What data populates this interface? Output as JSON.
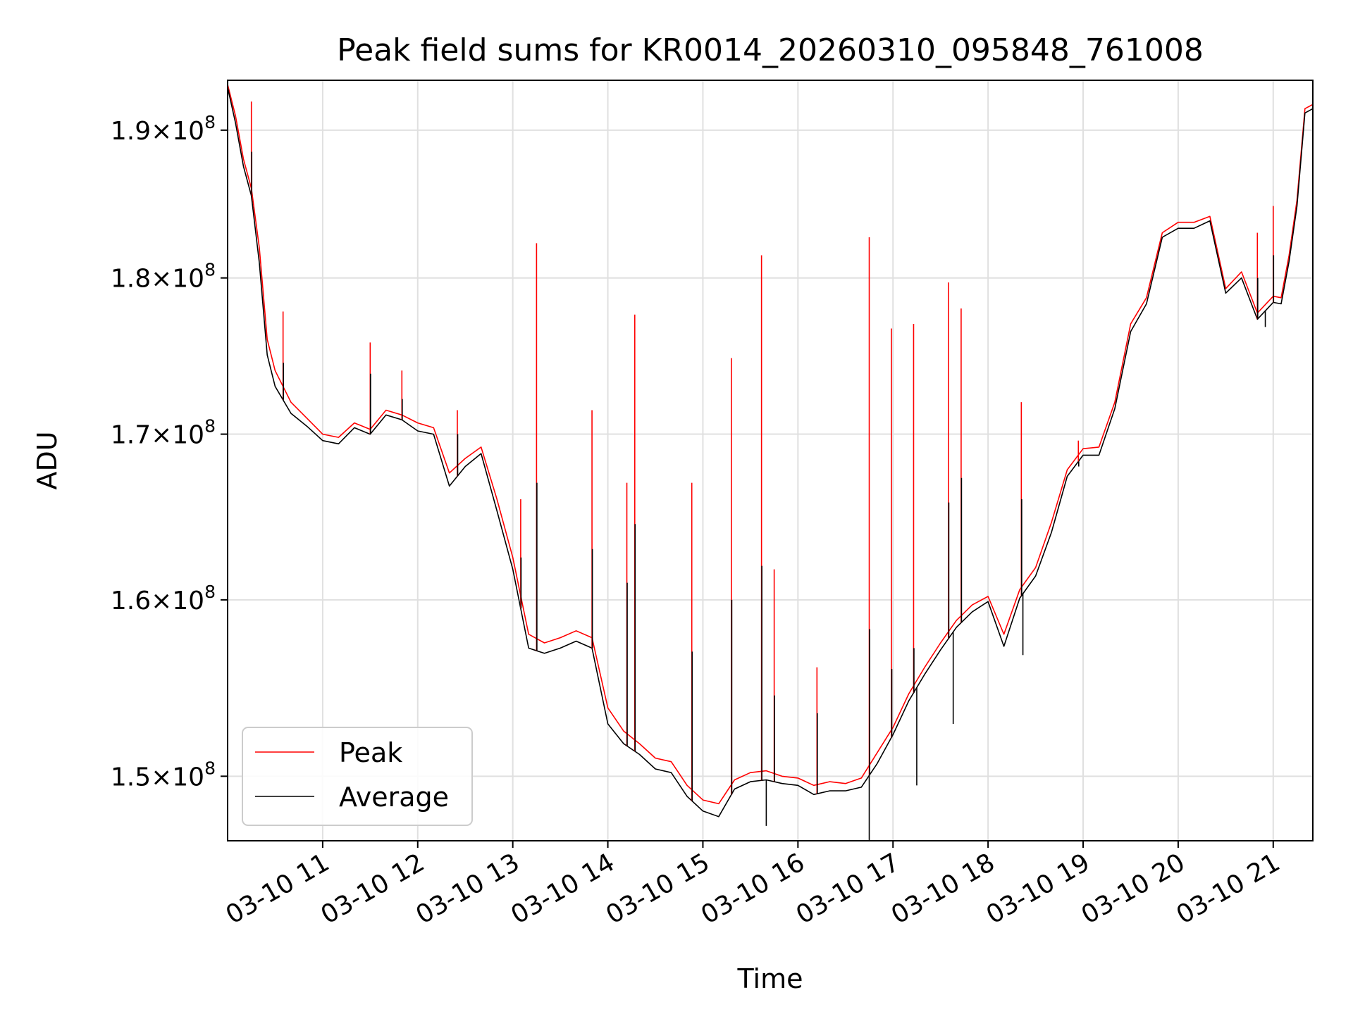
{
  "chart_data": {
    "type": "line",
    "title": "Peak field sums for KR0014_20260310_095848_761008",
    "xlabel": "Time",
    "ylabel": "ADU",
    "yscale": "log",
    "grid": true,
    "legend_position": "lower-left",
    "xlim": [
      "03-10 10:00",
      "03-10 21:25"
    ],
    "ylim": [
      146500000,
      193500000
    ],
    "x_ticks": [
      "03-10 11",
      "03-10 12",
      "03-10 13",
      "03-10 14",
      "03-10 15",
      "03-10 16",
      "03-10 17",
      "03-10 18",
      "03-10 19",
      "03-10 20",
      "03-10 21"
    ],
    "y_ticks": [
      {
        "value": 150000000,
        "mantissa": "1.5",
        "exponent": "8"
      },
      {
        "value": 160000000,
        "mantissa": "1.6",
        "exponent": "8"
      },
      {
        "value": 170000000,
        "mantissa": "1.7",
        "exponent": "8"
      },
      {
        "value": 180000000,
        "mantissa": "1.8",
        "exponent": "8"
      },
      {
        "value": 190000000,
        "mantissa": "1.9",
        "exponent": "8"
      }
    ],
    "y_tick_times": "×10",
    "x": [
      "03-10 10:00",
      "03-10 10:05",
      "03-10 10:10",
      "03-10 10:15",
      "03-10 10:20",
      "03-10 10:25",
      "03-10 10:30",
      "03-10 10:40",
      "03-10 10:50",
      "03-10 11:00",
      "03-10 11:10",
      "03-10 11:20",
      "03-10 11:30",
      "03-10 11:40",
      "03-10 11:50",
      "03-10 12:00",
      "03-10 12:10",
      "03-10 12:20",
      "03-10 12:30",
      "03-10 12:40",
      "03-10 12:50",
      "03-10 13:00",
      "03-10 13:10",
      "03-10 13:20",
      "03-10 13:30",
      "03-10 13:40",
      "03-10 13:50",
      "03-10 14:00",
      "03-10 14:10",
      "03-10 14:20",
      "03-10 14:30",
      "03-10 14:40",
      "03-10 14:50",
      "03-10 15:00",
      "03-10 15:10",
      "03-10 15:20",
      "03-10 15:30",
      "03-10 15:40",
      "03-10 15:50",
      "03-10 16:00",
      "03-10 16:10",
      "03-10 16:20",
      "03-10 16:30",
      "03-10 16:40",
      "03-10 16:50",
      "03-10 17:00",
      "03-10 17:10",
      "03-10 17:20",
      "03-10 17:30",
      "03-10 17:40",
      "03-10 17:50",
      "03-10 18:00",
      "03-10 18:10",
      "03-10 18:20",
      "03-10 18:30",
      "03-10 18:40",
      "03-10 18:50",
      "03-10 19:00",
      "03-10 19:10",
      "03-10 19:20",
      "03-10 19:30",
      "03-10 19:40",
      "03-10 19:50",
      "03-10 20:00",
      "03-10 20:10",
      "03-10 20:20",
      "03-10 20:30",
      "03-10 20:40",
      "03-10 20:50",
      "03-10 21:00",
      "03-10 21:05",
      "03-10 21:10",
      "03-10 21:15",
      "03-10 21:20",
      "03-10 21:25"
    ],
    "series": [
      {
        "name": "Peak",
        "color": "#ff0000",
        "values": [
          193200000,
          191000000,
          188000000,
          186000000,
          182000000,
          176000000,
          174000000,
          172000000,
          171000000,
          170000000,
          169800000,
          170700000,
          170300000,
          171500000,
          171200000,
          170700000,
          170400000,
          167600000,
          168500000,
          169200000,
          166000000,
          162500000,
          158000000,
          157500000,
          157800000,
          158200000,
          157800000,
          153800000,
          152500000,
          151800000,
          151000000,
          150800000,
          149500000,
          148700000,
          148500000,
          149800000,
          150200000,
          150300000,
          150000000,
          149900000,
          149500000,
          149700000,
          149600000,
          149900000,
          151300000,
          152700000,
          154600000,
          156100000,
          157500000,
          158800000,
          159700000,
          160200000,
          158000000,
          160600000,
          161900000,
          164600000,
          167800000,
          169100000,
          169200000,
          172000000,
          177000000,
          178700000,
          183000000,
          183700000,
          183700000,
          184100000,
          179300000,
          180400000,
          177700000,
          178800000,
          178700000,
          181500000,
          185200000,
          191500000,
          191800000
        ]
      },
      {
        "name": "Average",
        "color": "#000000",
        "values": [
          193000000,
          190500000,
          187500000,
          185500000,
          181000000,
          175000000,
          173000000,
          171300000,
          170500000,
          169600000,
          169400000,
          170400000,
          170000000,
          171200000,
          170900000,
          170200000,
          170000000,
          166800000,
          168000000,
          168800000,
          165300000,
          161800000,
          157200000,
          156900000,
          157200000,
          157600000,
          157200000,
          152900000,
          151800000,
          151200000,
          150400000,
          150200000,
          148900000,
          148100000,
          147800000,
          149300000,
          149700000,
          149800000,
          149600000,
          149500000,
          149000000,
          149200000,
          149200000,
          149400000,
          150700000,
          152300000,
          154200000,
          155700000,
          157100000,
          158400000,
          159300000,
          159900000,
          157300000,
          160100000,
          161400000,
          164000000,
          167400000,
          168700000,
          168700000,
          171600000,
          176500000,
          178300000,
          182700000,
          183300000,
          183300000,
          183800000,
          179000000,
          180000000,
          177300000,
          178400000,
          178300000,
          181100000,
          184800000,
          191200000,
          191500000
        ]
      }
    ],
    "spikes": [
      {
        "x": "03-10 10:15",
        "peak": 192000000,
        "average": 188500000
      },
      {
        "x": "03-10 10:35",
        "peak": 177800000,
        "average": 174500000
      },
      {
        "x": "03-10 11:30",
        "peak": 175800000,
        "average": 173800000
      },
      {
        "x": "03-10 11:50",
        "peak": 174000000,
        "average": 172200000
      },
      {
        "x": "03-10 12:25",
        "peak": 171500000,
        "average": 170000000
      },
      {
        "x": "03-10 13:05",
        "peak": 166000000,
        "average": 162500000
      },
      {
        "x": "03-10 13:15",
        "peak": 182300000,
        "average": 167000000
      },
      {
        "x": "03-10 13:50",
        "peak": 171500000,
        "average": 163000000
      },
      {
        "x": "03-10 14:12",
        "peak": 167000000,
        "average": 161000000
      },
      {
        "x": "03-10 14:17",
        "peak": 177600000,
        "average": 164500000
      },
      {
        "x": "03-10 14:53",
        "peak": 167000000,
        "average": 157000000
      },
      {
        "x": "03-10 15:18",
        "peak": 174800000,
        "average": 160000000
      },
      {
        "x": "03-10 15:37",
        "peak": 181500000,
        "average": 162000000
      },
      {
        "x": "03-10 15:45",
        "peak": 161800000,
        "average": 154500000
      },
      {
        "x": "03-10 16:12",
        "peak": 156100000,
        "average": 153500000
      },
      {
        "x": "03-10 16:45",
        "peak": 182700000,
        "average": 158300000
      },
      {
        "x": "03-10 16:59",
        "peak": 176700000,
        "average": 156000000
      },
      {
        "x": "03-10 17:13",
        "peak": 177000000,
        "average": 157200000
      },
      {
        "x": "03-10 17:35",
        "peak": 179700000,
        "average": 165800000
      },
      {
        "x": "03-10 17:43",
        "peak": 178000000,
        "average": 167300000
      },
      {
        "x": "03-10 18:21",
        "peak": 172000000,
        "average": 166000000
      },
      {
        "x": "03-10 18:57",
        "peak": 169600000,
        "average": 168000000
      },
      {
        "x": "03-10 20:50",
        "peak": 183000000,
        "average": 180000000
      },
      {
        "x": "03-10 21:00",
        "peak": 184800000,
        "average": 181500000
      }
    ],
    "dips": [
      {
        "x": "03-10 15:40",
        "average": 147300000
      },
      {
        "x": "03-10 16:45",
        "average": 146500000
      },
      {
        "x": "03-10 17:15",
        "average": 149500000
      },
      {
        "x": "03-10 17:38",
        "average": 152900000
      },
      {
        "x": "03-10 18:22",
        "average": 156800000
      },
      {
        "x": "03-10 20:55",
        "average": 176800000
      }
    ]
  }
}
